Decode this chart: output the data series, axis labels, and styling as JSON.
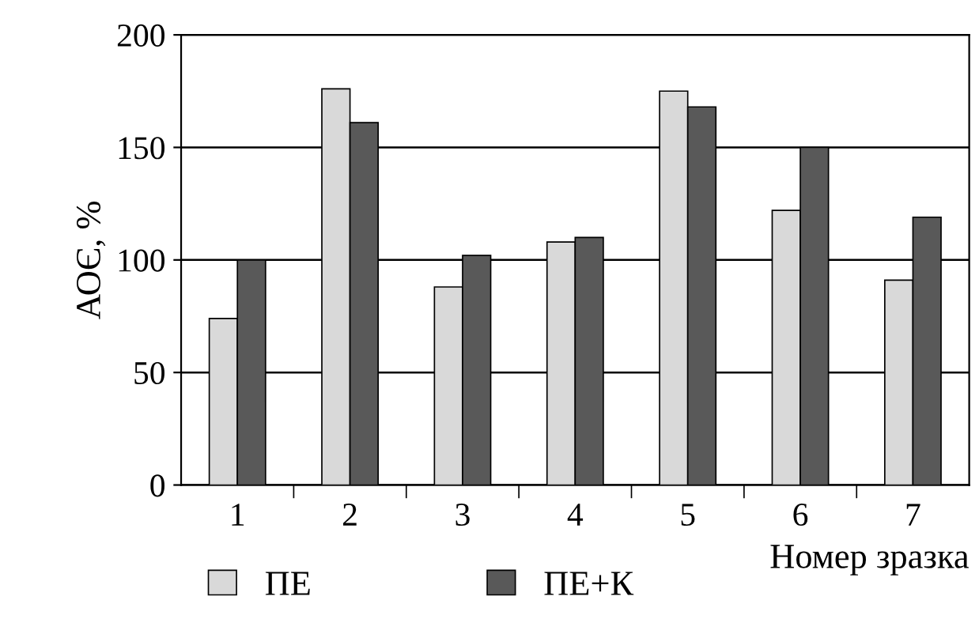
{
  "chart_data": {
    "type": "bar",
    "categories": [
      "1",
      "2",
      "3",
      "4",
      "5",
      "6",
      "7"
    ],
    "series": [
      {
        "name": "ПЕ",
        "color": "#d9d9d9",
        "values": [
          74,
          176,
          88,
          108,
          175,
          122,
          91
        ]
      },
      {
        "name": "ПЕ+К",
        "color": "#595959",
        "values": [
          100,
          161,
          102,
          110,
          168,
          150,
          119
        ]
      }
    ],
    "xlabel": "Номер зразка",
    "ylabel": "АОЄ, %",
    "ylim": [
      0,
      200
    ],
    "yticks": [
      0,
      50,
      100,
      150,
      200
    ],
    "grid": "y",
    "legend": "bottom"
  }
}
